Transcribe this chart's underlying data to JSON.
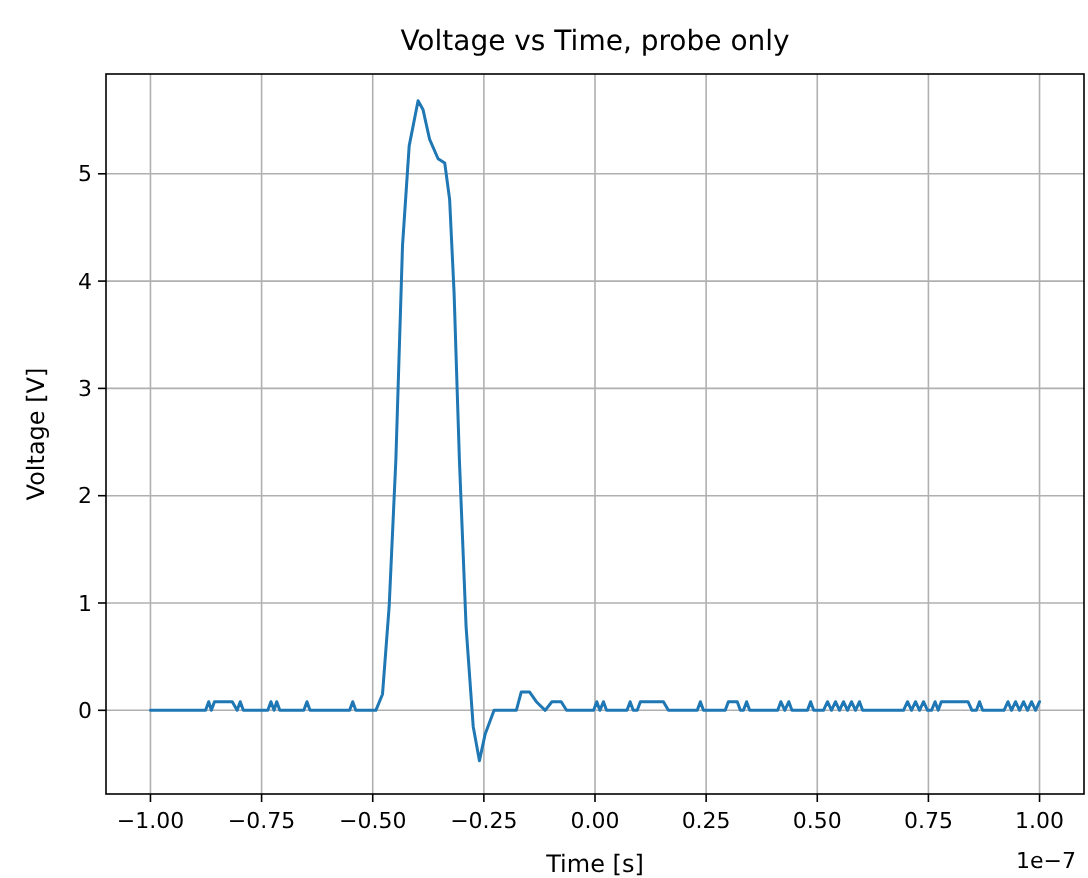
{
  "chart_data": {
    "type": "line",
    "title": "Voltage vs Time, probe only",
    "xlabel": "Time [s]",
    "ylabel": "Voltage [V]",
    "annotations": [
      "1e−7"
    ],
    "x": [
      -1,
      -0.876,
      -0.869,
      -0.863,
      -0.856,
      -0.816,
      -0.805,
      -0.798,
      -0.791,
      -0.736,
      -0.729,
      -0.722,
      -0.716,
      -0.709,
      -0.655,
      -0.648,
      -0.641,
      -0.552,
      -0.545,
      -0.538,
      -0.493,
      -0.478,
      -0.463,
      -0.448,
      -0.433,
      -0.418,
      -0.398,
      -0.387,
      -0.372,
      -0.353,
      -0.338,
      -0.327,
      -0.317,
      -0.305,
      -0.29,
      -0.274,
      -0.26,
      -0.247,
      -0.227,
      -0.177,
      -0.166,
      -0.147,
      -0.132,
      -0.112,
      -0.097,
      -0.076,
      -0.064,
      -0.003,
      0.004,
      0.011,
      0.019,
      0.026,
      0.072,
      0.079,
      0.086,
      0.095,
      0.102,
      0.154,
      0.165,
      0.23,
      0.237,
      0.244,
      0.293,
      0.3,
      0.32,
      0.327,
      0.334,
      0.341,
      0.348,
      0.411,
      0.418,
      0.427,
      0.436,
      0.443,
      0.478,
      0.485,
      0.492,
      0.514,
      0.523,
      0.532,
      0.541,
      0.55,
      0.559,
      0.568,
      0.577,
      0.586,
      0.595,
      0.602,
      0.694,
      0.703,
      0.712,
      0.721,
      0.73,
      0.739,
      0.748,
      0.757,
      0.765,
      0.772,
      0.779,
      0.839,
      0.848,
      0.858,
      0.865,
      0.872,
      0.92,
      0.929,
      0.937,
      0.946,
      0.955,
      0.964,
      0.973,
      0.982,
      0.991,
      1.0
    ],
    "series": [
      {
        "color": "#1f77b4",
        "values": [
          0,
          0,
          0.08,
          0,
          0.08,
          0.08,
          0,
          0.08,
          0,
          0,
          0.08,
          0,
          0.08,
          0,
          0,
          0.08,
          0,
          0,
          0.08,
          0,
          0,
          0.15,
          0.97,
          2.33,
          4.33,
          5.26,
          5.68,
          5.6,
          5.32,
          5.14,
          5.1,
          4.76,
          3.89,
          2.33,
          0.78,
          -0.15,
          -0.47,
          -0.22,
          0,
          0,
          0.17,
          0.17,
          0.08,
          0,
          0.08,
          0.08,
          0,
          0,
          0.08,
          0,
          0.08,
          0,
          0,
          0.08,
          0,
          0,
          0.08,
          0.08,
          0,
          0,
          0.08,
          0,
          0,
          0.08,
          0.08,
          0,
          0,
          0.08,
          0,
          0,
          0.08,
          0,
          0.08,
          0,
          0,
          0.08,
          0,
          0,
          0.08,
          0,
          0.08,
          0,
          0.08,
          0,
          0.08,
          0,
          0.08,
          0,
          0,
          0.08,
          0,
          0.08,
          0,
          0.08,
          0,
          0,
          0.08,
          0,
          0.08,
          0.08,
          0,
          0,
          0.08,
          0,
          0,
          0.08,
          0,
          0.08,
          0,
          0.08,
          0,
          0.08,
          0,
          0.08
        ]
      }
    ],
    "xlim": [
      -1.1,
      1.1
    ],
    "xticks": [
      {
        "value": -1,
        "label": "−1.00"
      },
      {
        "value": -0.75,
        "label": "−0.75"
      },
      {
        "value": -0.5,
        "label": "−0.50"
      },
      {
        "value": -0.25,
        "label": "−0.25"
      },
      {
        "value": 0,
        "label": "0.00"
      },
      {
        "value": 0.25,
        "label": "0.25"
      },
      {
        "value": 0.5,
        "label": "0.50"
      },
      {
        "value": 0.75,
        "label": "0.75"
      },
      {
        "value": 1,
        "label": "1.00"
      }
    ],
    "ylim": [
      -0.78,
      5.93
    ],
    "yticks": [
      0,
      1,
      2,
      3,
      4,
      5
    ],
    "grid": true,
    "line_style": "solid",
    "marker": "none"
  }
}
